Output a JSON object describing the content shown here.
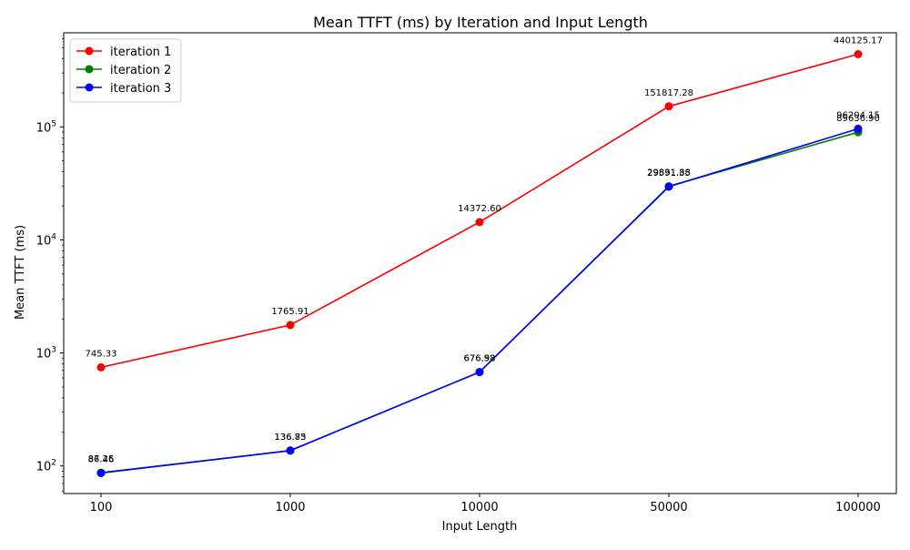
{
  "chart_data": {
    "type": "line",
    "title": "Mean TTFT (ms) by Iteration and Input Length",
    "xlabel": "Input Length",
    "ylabel": "Mean TTFT (ms)",
    "categories": [
      "100",
      "1000",
      "10000",
      "50000",
      "100000"
    ],
    "y_scale": "log",
    "y_ticks": [
      {
        "value": 100,
        "base": "10",
        "exp": "2"
      },
      {
        "value": 1000,
        "base": "10",
        "exp": "3"
      },
      {
        "value": 10000,
        "base": "10",
        "exp": "4"
      },
      {
        "value": 100000,
        "base": "10",
        "exp": "5"
      }
    ],
    "ylim": [
      57,
      680000
    ],
    "grid": false,
    "legend_position": "upper-left",
    "series": [
      {
        "name": "iteration 1",
        "color": "#ff0000",
        "values": [
          745.33,
          1765.91,
          14372.6,
          151817.28,
          440125.17
        ],
        "labels": [
          "745.33",
          "1765.91",
          "14372.60",
          "151817.28",
          "440125.17"
        ]
      },
      {
        "name": "iteration 2",
        "color": "#008000",
        "values": [
          87.25,
          136.75,
          676.52,
          29831.88,
          89636.9
        ],
        "labels": [
          "87.25",
          "136.75",
          "676.52",
          "29831.88",
          "89636.90"
        ]
      },
      {
        "name": "iteration 3",
        "color": "#0000ff",
        "values": [
          86.46,
          136.83,
          676.98,
          29591.35,
          96204.15
        ],
        "labels": [
          "86.46",
          "136.83",
          "676.98",
          "29591.35",
          "96204.15"
        ]
      }
    ]
  }
}
